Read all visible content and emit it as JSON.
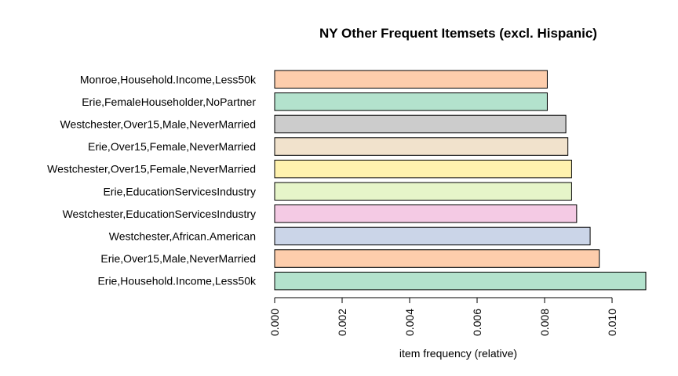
{
  "chart_data": {
    "type": "bar",
    "orientation": "horizontal",
    "title": "NY Other Frequent Itemsets (excl. Hispanic)",
    "xlabel": "item frequency (relative)",
    "ylabel": "",
    "xlim": [
      0,
      0.011
    ],
    "x_ticks": [
      "0.000",
      "0.002",
      "0.004",
      "0.006",
      "0.008",
      "0.010"
    ],
    "x_tick_values": [
      0,
      0.002,
      0.004,
      0.006,
      0.008,
      0.01
    ],
    "categories": [
      "Monroe,Household.Income,Less50k",
      "Erie,FemaleHouseholder,NoPartner",
      "Westchester,Over15,Male,NeverMarried",
      "Erie,Over15,Female,NeverMarried",
      "Westchester,Over15,Female,NeverMarried",
      "Erie,EducationServicesIndustry",
      "Westchester,EducationServicesIndustry",
      "Westchester,African.American",
      "Erie,Over15,Male,NeverMarried",
      "Erie,Household.Income,Less50k"
    ],
    "values": [
      0.00808,
      0.00808,
      0.00863,
      0.00869,
      0.0088,
      0.0088,
      0.00895,
      0.00935,
      0.00962,
      0.011
    ],
    "colors": [
      "#FDCDAC",
      "#B3E2CD",
      "#CCCCCC",
      "#F1E2CC",
      "#FFF2AE",
      "#E6F5C9",
      "#F4CAE4",
      "#CBD5E8",
      "#FDCDAC",
      "#B3E2CD"
    ],
    "grid": false,
    "legend": "none"
  }
}
